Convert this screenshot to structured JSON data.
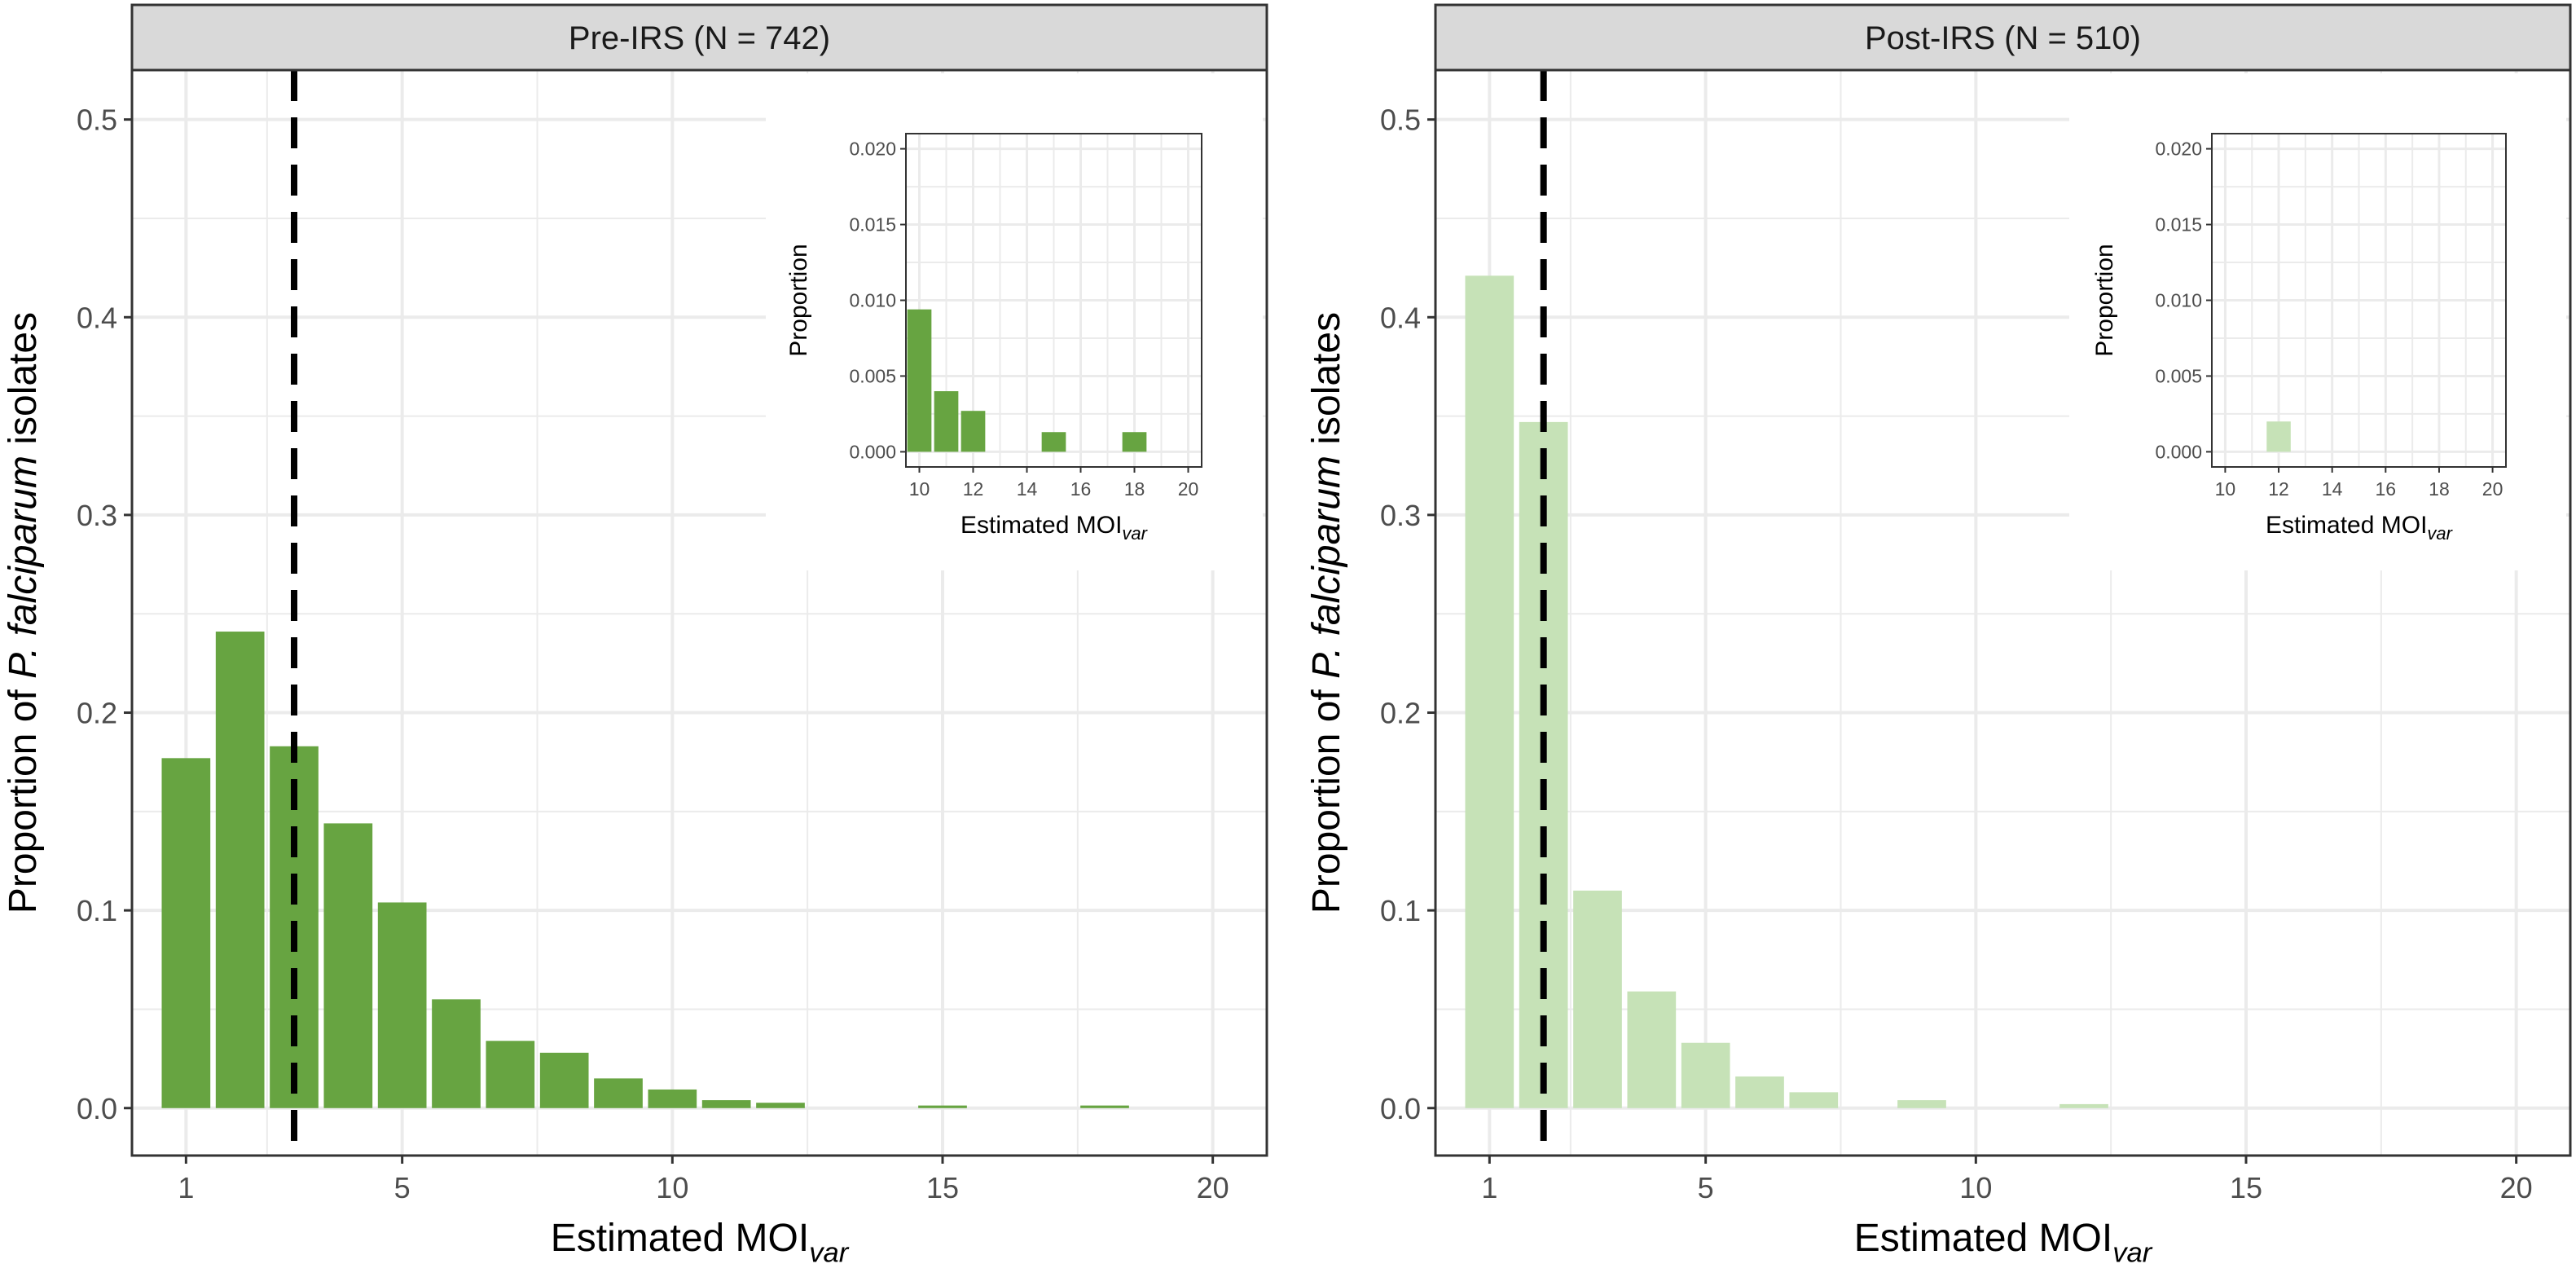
{
  "figure": {
    "y_label_prefix": "Proportion of ",
    "y_label_species": "P. falciparum",
    "y_label_suffix": " isolates",
    "x_label_main": "Estimated MOI",
    "x_label_sub": "var",
    "inset_y_label": "Proportion"
  },
  "colors": {
    "pre": "#67a441",
    "post": "#c6e2b7",
    "strip": "#d9d9d9",
    "grid": "#ebebeb",
    "vline": "#000000"
  },
  "chart_data": [
    {
      "type": "bar",
      "panel": "pre",
      "title": "Pre-IRS (N = 742)",
      "xlabel": "Estimated MOIvar",
      "ylabel": "Proportion of P. falciparum isolates",
      "x": [
        1,
        2,
        3,
        4,
        5,
        6,
        7,
        8,
        9,
        10,
        11,
        12,
        15,
        18
      ],
      "values": [
        0.177,
        0.241,
        0.183,
        0.144,
        0.104,
        0.055,
        0.034,
        0.028,
        0.015,
        0.0094,
        0.004,
        0.0027,
        0.0013,
        0.0013
      ],
      "xlim": [
        0,
        21
      ],
      "ylim": [
        -0.024,
        0.525
      ],
      "xticks": [
        1,
        5,
        10,
        15,
        20
      ],
      "yticks": [
        0.0,
        0.1,
        0.2,
        0.3,
        0.4,
        0.5
      ],
      "ytick_labels": [
        "0.0",
        "0.1",
        "0.2",
        "0.3",
        "0.4",
        "0.5"
      ],
      "vline": 3.0,
      "grid": true,
      "inset": {
        "x": [
          10,
          11,
          12,
          15,
          18
        ],
        "values": [
          0.0094,
          0.004,
          0.0027,
          0.0013,
          0.0013
        ],
        "xlim": [
          9.5,
          20.5
        ],
        "ylim": [
          -0.001,
          0.021
        ],
        "xticks": [
          10,
          12,
          14,
          16,
          18,
          20
        ],
        "yticks": [
          0.0,
          0.005,
          0.01,
          0.015,
          0.02
        ],
        "ytick_labels": [
          "0.000",
          "0.005",
          "0.010",
          "0.015",
          "0.020"
        ],
        "ylabel": "Proportion",
        "xlabel": "Estimated MOIvar"
      }
    },
    {
      "type": "bar",
      "panel": "post",
      "title": "Post-IRS (N = 510)",
      "xlabel": "Estimated MOIvar",
      "ylabel": "Proportion of P. falciparum isolates",
      "x": [
        1,
        2,
        3,
        4,
        5,
        6,
        7,
        9,
        12
      ],
      "values": [
        0.421,
        0.347,
        0.11,
        0.059,
        0.033,
        0.016,
        0.008,
        0.004,
        0.002
      ],
      "xlim": [
        0,
        21
      ],
      "ylim": [
        -0.024,
        0.525
      ],
      "xticks": [
        1,
        5,
        10,
        15,
        20
      ],
      "yticks": [
        0.0,
        0.1,
        0.2,
        0.3,
        0.4,
        0.5
      ],
      "ytick_labels": [
        "0.0",
        "0.1",
        "0.2",
        "0.3",
        "0.4",
        "0.5"
      ],
      "vline": 2.0,
      "grid": true,
      "inset": {
        "x": [
          12
        ],
        "values": [
          0.002
        ],
        "xlim": [
          9.5,
          20.5
        ],
        "ylim": [
          -0.001,
          0.021
        ],
        "xticks": [
          10,
          12,
          14,
          16,
          18,
          20
        ],
        "yticks": [
          0.0,
          0.005,
          0.01,
          0.015,
          0.02
        ],
        "ytick_labels": [
          "0.000",
          "0.005",
          "0.010",
          "0.015",
          "0.020"
        ],
        "ylabel": "Proportion",
        "xlabel": "Estimated MOIvar"
      }
    }
  ]
}
